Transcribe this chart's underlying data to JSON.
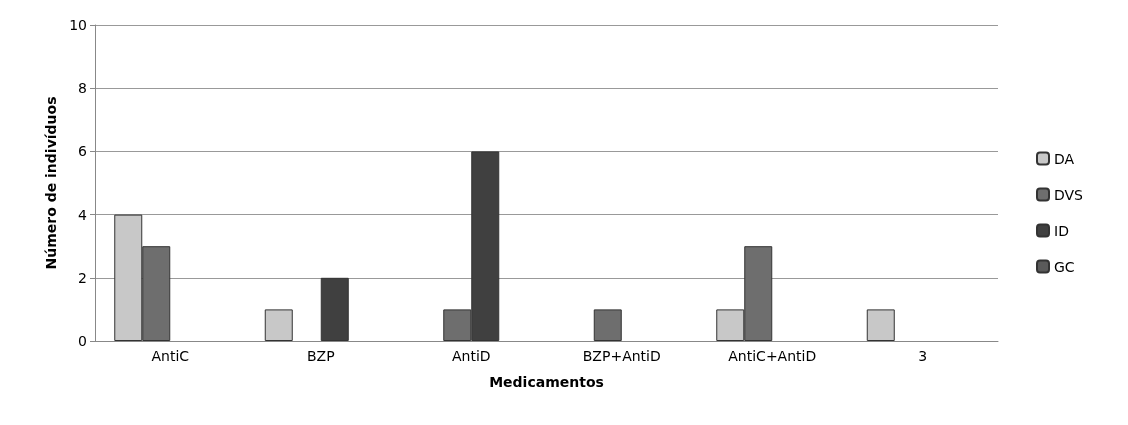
{
  "chart_data": {
    "type": "bar",
    "xlabel": "Medicamentos",
    "ylabel": "Número de indivíduos",
    "categories": [
      "AntiC",
      "BZP",
      "AntiD",
      "BZP+AntiD",
      "AntiC+AntiD",
      "3"
    ],
    "series": [
      {
        "name": "DA",
        "color": "#c8c8c8",
        "values": [
          4,
          1,
          null,
          null,
          1,
          1
        ]
      },
      {
        "name": "DVS",
        "color": "#6e6e6e",
        "values": [
          3,
          null,
          1,
          1,
          3,
          null
        ]
      },
      {
        "name": "ID",
        "color": "#404040",
        "values": [
          null,
          2,
          6,
          null,
          null,
          null
        ]
      },
      {
        "name": "GC",
        "color": "#5a5a5a",
        "values": [
          null,
          null,
          null,
          null,
          null,
          null
        ]
      }
    ],
    "ylim": [
      0,
      10
    ],
    "yticks": [
      0,
      2,
      4,
      6,
      8,
      10
    ],
    "grid": "y",
    "legend": "right"
  }
}
